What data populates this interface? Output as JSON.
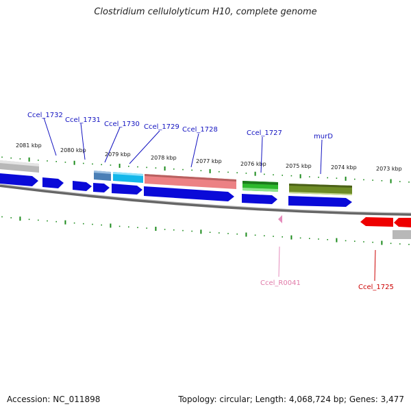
{
  "title": "Clostridium cellulolyticum H10, complete genome",
  "footer": {
    "accession": "Accession: NC_011898",
    "summary": "Topology: circular; Length: 4,068,724 bp; Genes: 3,477"
  },
  "colors": {
    "forward_gene": "#0a0ad8",
    "reverse_gene": "#ee0000",
    "tick": "#1a8a1a",
    "backbone": "#888888",
    "label_blue": "#1010c0",
    "label_red": "#cc0000",
    "label_pink": "#e07aa8"
  },
  "scale_labels": [
    "2081 kbp",
    "2080 kbp",
    "2079 kbp",
    "2078 kbp",
    "2077 kbp",
    "2076 kbp",
    "2075 kbp",
    "2074 kbp",
    "2073 kbp"
  ],
  "gene_labels": [
    "Ccel_1732",
    "Ccel_1731",
    "Ccel_1730",
    "Ccel_1729",
    "Ccel_1728",
    "Ccel_1727",
    "murD",
    "Ccel_R0041",
    "Ccel_1725"
  ]
}
